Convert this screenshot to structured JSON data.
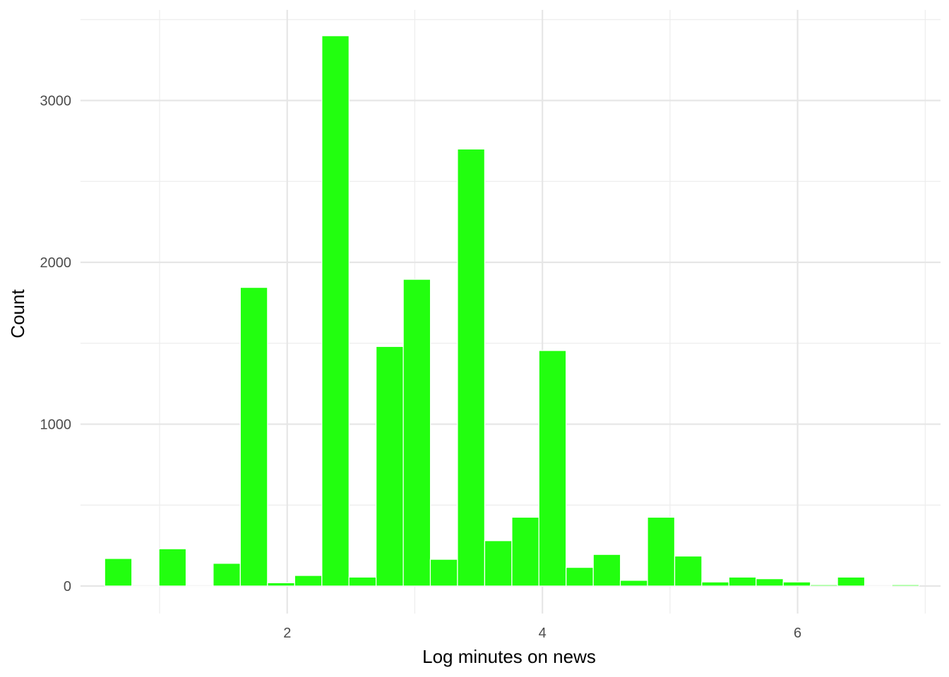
{
  "chart_data": {
    "type": "bar",
    "title": "",
    "xlabel": "Log minutes on news",
    "ylabel": "Count",
    "bar_color": "#22ff0f",
    "bar_outline": "#ffffff",
    "background": "#ffffff",
    "grid": true,
    "legend": "none",
    "xlim": [
      0.38,
      7.12
    ],
    "ylim": [
      -170,
      3560
    ],
    "x_ticks": [
      2,
      4,
      6
    ],
    "x_tick_labels": [
      "2",
      "4",
      "6"
    ],
    "x_minor_ticks": [
      1,
      3,
      5,
      7
    ],
    "y_ticks": [
      0,
      1000,
      2000,
      3000
    ],
    "y_tick_labels": [
      "0",
      "1000",
      "2000",
      "3000"
    ],
    "y_minor_ticks": [
      500,
      1500,
      2500,
      3500
    ],
    "bin_width": 0.2127,
    "bins": [
      {
        "x": 0.676,
        "count": 170
      },
      {
        "x": 0.888,
        "count": 0
      },
      {
        "x": 1.101,
        "count": 230
      },
      {
        "x": 1.314,
        "count": 0
      },
      {
        "x": 1.526,
        "count": 140
      },
      {
        "x": 1.739,
        "count": 1845
      },
      {
        "x": 1.952,
        "count": 20
      },
      {
        "x": 2.165,
        "count": 65
      },
      {
        "x": 2.378,
        "count": 3400
      },
      {
        "x": 2.59,
        "count": 55
      },
      {
        "x": 2.803,
        "count": 1480
      },
      {
        "x": 3.016,
        "count": 1895
      },
      {
        "x": 3.228,
        "count": 165
      },
      {
        "x": 3.441,
        "count": 2700
      },
      {
        "x": 3.654,
        "count": 280
      },
      {
        "x": 3.867,
        "count": 425
      },
      {
        "x": 4.079,
        "count": 1455
      },
      {
        "x": 4.292,
        "count": 115
      },
      {
        "x": 4.505,
        "count": 195
      },
      {
        "x": 4.717,
        "count": 35
      },
      {
        "x": 4.93,
        "count": 425
      },
      {
        "x": 5.143,
        "count": 185
      },
      {
        "x": 5.355,
        "count": 25
      },
      {
        "x": 5.568,
        "count": 55
      },
      {
        "x": 5.781,
        "count": 45
      },
      {
        "x": 5.994,
        "count": 25
      },
      {
        "x": 6.206,
        "count": 8
      },
      {
        "x": 6.419,
        "count": 55
      },
      {
        "x": 6.632,
        "count": 0
      },
      {
        "x": 6.845,
        "count": 8
      }
    ]
  }
}
